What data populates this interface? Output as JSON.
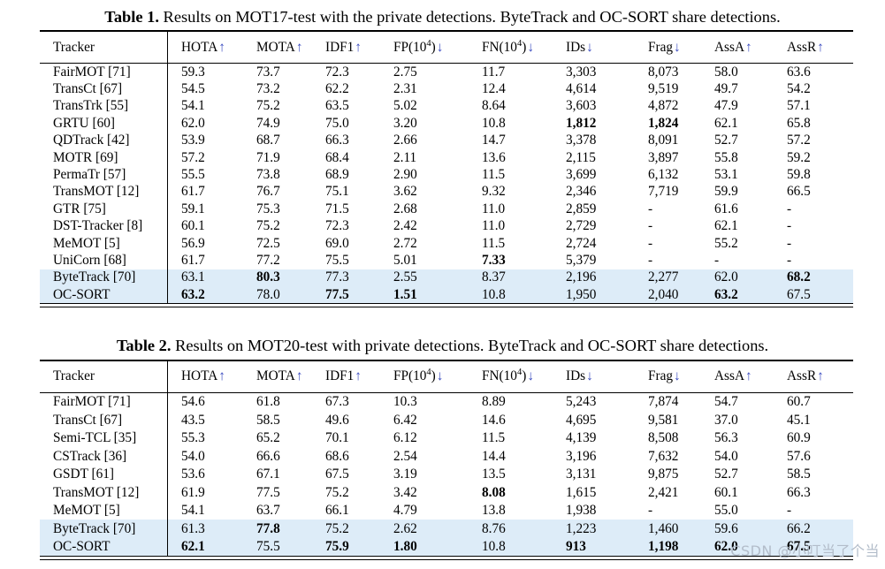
{
  "colors": {
    "arrow": "#3b4cc0",
    "highlight_row": "#ddecf8",
    "watermark": "#b3bdca"
  },
  "watermark": {
    "text": "CSDN @小叮当了个当"
  },
  "tables": [
    {
      "caption_bold": "Table 1.",
      "caption_rest": " Results on MOT17-test with the private detections. ByteTrack and OC-SORT share detections.",
      "columns": [
        {
          "label": "Tracker"
        },
        {
          "label": "HOTA",
          "arrow": "up"
        },
        {
          "label": "MOTA",
          "arrow": "up"
        },
        {
          "label": "IDF1",
          "arrow": "up"
        },
        {
          "label": "FP(10",
          "sup": "4",
          "after": ")",
          "arrow": "down"
        },
        {
          "label": "FN(10",
          "sup": "4",
          "after": ")",
          "arrow": "down"
        },
        {
          "label": "IDs",
          "arrow": "down"
        },
        {
          "label": "Frag",
          "arrow": "down"
        },
        {
          "label": "AssA",
          "arrow": "up"
        },
        {
          "label": "AssR",
          "arrow": "up"
        }
      ],
      "rows": [
        {
          "tracker": "FairMOT [71]",
          "cells": [
            "59.3",
            "73.7",
            "72.3",
            "2.75",
            "11.7",
            "3,303",
            "8,073",
            "58.0",
            "63.6"
          ],
          "bold": [],
          "highlight": false
        },
        {
          "tracker": "TransCt [67]",
          "cells": [
            "54.5",
            "73.2",
            "62.2",
            "2.31",
            "12.4",
            "4,614",
            "9,519",
            "49.7",
            "54.2"
          ],
          "bold": [],
          "highlight": false
        },
        {
          "tracker": "TransTrk [55]",
          "cells": [
            "54.1",
            "75.2",
            "63.5",
            "5.02",
            "8.64",
            "3,603",
            "4,872",
            "47.9",
            "57.1"
          ],
          "bold": [],
          "highlight": false
        },
        {
          "tracker": "GRTU [60]",
          "cells": [
            "62.0",
            "74.9",
            "75.0",
            "3.20",
            "10.8",
            "1,812",
            "1,824",
            "62.1",
            "65.8"
          ],
          "bold": [
            5,
            6
          ],
          "highlight": false
        },
        {
          "tracker": "QDTrack [42]",
          "cells": [
            "53.9",
            "68.7",
            "66.3",
            "2.66",
            "14.7",
            "3,378",
            "8,091",
            "52.7",
            "57.2"
          ],
          "bold": [],
          "highlight": false
        },
        {
          "tracker": "MOTR [69]",
          "cells": [
            "57.2",
            "71.9",
            "68.4",
            "2.11",
            "13.6",
            "2,115",
            "3,897",
            "55.8",
            "59.2"
          ],
          "bold": [],
          "highlight": false
        },
        {
          "tracker": "PermaTr [57]",
          "cells": [
            "55.5",
            "73.8",
            "68.9",
            "2.90",
            "11.5",
            "3,699",
            "6,132",
            "53.1",
            "59.8"
          ],
          "bold": [],
          "highlight": false
        },
        {
          "tracker": "TransMOT [12]",
          "cells": [
            "61.7",
            "76.7",
            "75.1",
            "3.62",
            "9.32",
            "2,346",
            "7,719",
            "59.9",
            "66.5"
          ],
          "bold": [],
          "highlight": false
        },
        {
          "tracker": "GTR [75]",
          "cells": [
            "59.1",
            "75.3",
            "71.5",
            "2.68",
            "11.0",
            "2,859",
            "-",
            "61.6",
            "-"
          ],
          "bold": [],
          "highlight": false
        },
        {
          "tracker": "DST-Tracker [8]",
          "cells": [
            "60.1",
            "75.2",
            "72.3",
            "2.42",
            "11.0",
            "2,729",
            "-",
            "62.1",
            "-"
          ],
          "bold": [],
          "highlight": false
        },
        {
          "tracker": "MeMOT [5]",
          "cells": [
            "56.9",
            "72.5",
            "69.0",
            "2.72",
            "11.5",
            "2,724",
            "-",
            "55.2",
            "-"
          ],
          "bold": [],
          "highlight": false
        },
        {
          "tracker": "UniCorn [68]",
          "cells": [
            "61.7",
            "77.2",
            "75.5",
            "5.01",
            "7.33",
            "5,379",
            "-",
            "-",
            "-"
          ],
          "bold": [
            4
          ],
          "highlight": false
        },
        {
          "tracker": "ByteTrack [70]",
          "cells": [
            "63.1",
            "80.3",
            "77.3",
            "2.55",
            "8.37",
            "2,196",
            "2,277",
            "62.0",
            "68.2"
          ],
          "bold": [
            1,
            8
          ],
          "highlight": true
        },
        {
          "tracker": "OC-SORT",
          "cells": [
            "63.2",
            "78.0",
            "77.5",
            "1.51",
            "10.8",
            "1,950",
            "2,040",
            "63.2",
            "67.5"
          ],
          "bold": [
            0,
            2,
            3,
            7
          ],
          "highlight": true
        }
      ]
    },
    {
      "caption_bold": "Table 2.",
      "caption_rest": " Results on MOT20-test with private detections. ByteTrack and OC-SORT share detections.",
      "columns": [
        {
          "label": "Tracker"
        },
        {
          "label": "HOTA",
          "arrow": "up"
        },
        {
          "label": "MOTA",
          "arrow": "up"
        },
        {
          "label": "IDF1",
          "arrow": "up"
        },
        {
          "label": "FP(10",
          "sup": "4",
          "after": ")",
          "arrow": "down"
        },
        {
          "label": "FN(10",
          "sup": "4",
          "after": ")",
          "arrow": "down"
        },
        {
          "label": "IDs",
          "arrow": "down"
        },
        {
          "label": "Frag",
          "arrow": "down"
        },
        {
          "label": "AssA",
          "arrow": "up"
        },
        {
          "label": "AssR",
          "arrow": "up"
        }
      ],
      "rows": [
        {
          "tracker": "FairMOT [71]",
          "cells": [
            "54.6",
            "61.8",
            "67.3",
            "10.3",
            "8.89",
            "5,243",
            "7,874",
            "54.7",
            "60.7"
          ],
          "bold": [],
          "highlight": false
        },
        {
          "tracker": "TransCt [67]",
          "cells": [
            "43.5",
            "58.5",
            "49.6",
            "6.42",
            "14.6",
            "4,695",
            "9,581",
            "37.0",
            "45.1"
          ],
          "bold": [],
          "highlight": false
        },
        {
          "tracker": "Semi-TCL [35]",
          "cells": [
            "55.3",
            "65.2",
            "70.1",
            "6.12",
            "11.5",
            "4,139",
            "8,508",
            "56.3",
            "60.9"
          ],
          "bold": [],
          "highlight": false
        },
        {
          "tracker": "CSTrack [36]",
          "cells": [
            "54.0",
            "66.6",
            "68.6",
            "2.54",
            "14.4",
            "3,196",
            "7,632",
            "54.0",
            "57.6"
          ],
          "bold": [],
          "highlight": false
        },
        {
          "tracker": "GSDT [61]",
          "cells": [
            "53.6",
            "67.1",
            "67.5",
            "3.19",
            "13.5",
            "3,131",
            "9,875",
            "52.7",
            "58.5"
          ],
          "bold": [],
          "highlight": false
        },
        {
          "tracker": "TransMOT [12]",
          "cells": [
            "61.9",
            "77.5",
            "75.2",
            "3.42",
            "8.08",
            "1,615",
            "2,421",
            "60.1",
            "66.3"
          ],
          "bold": [
            4
          ],
          "highlight": false
        },
        {
          "tracker": "MeMOT [5]",
          "cells": [
            "54.1",
            "63.7",
            "66.1",
            "4.79",
            "13.8",
            "1,938",
            "-",
            "55.0",
            "-"
          ],
          "bold": [],
          "highlight": false
        },
        {
          "tracker": "ByteTrack [70]",
          "cells": [
            "61.3",
            "77.8",
            "75.2",
            "2.62",
            "8.76",
            "1,223",
            "1,460",
            "59.6",
            "66.2"
          ],
          "bold": [
            1
          ],
          "highlight": true
        },
        {
          "tracker": "OC-SORT",
          "cells": [
            "62.1",
            "75.5",
            "75.9",
            "1.80",
            "10.8",
            "913",
            "1,198",
            "62.0",
            "67.5"
          ],
          "bold": [
            0,
            2,
            3,
            5,
            6,
            7,
            8
          ],
          "highlight": true
        }
      ]
    }
  ]
}
